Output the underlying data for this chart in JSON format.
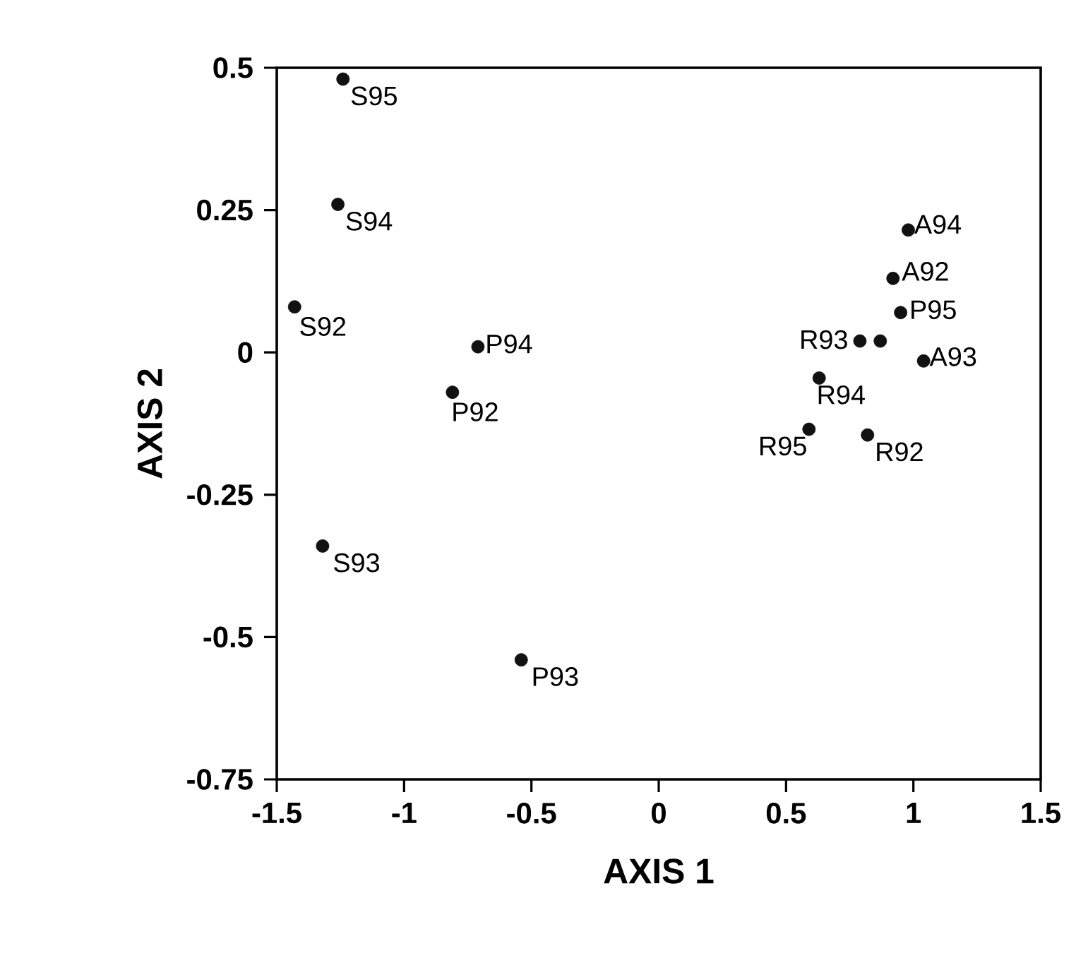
{
  "chart_data": {
    "type": "scatter",
    "xlabel": "AXIS 1",
    "ylabel": "AXIS 2",
    "x": [
      -1.24,
      -1.26,
      -1.43,
      -0.71,
      -0.81,
      -1.32,
      -0.54,
      0.98,
      0.92,
      0.95,
      0.79,
      0.87,
      1.04,
      0.63,
      0.59,
      0.82
    ],
    "values": [
      0.48,
      0.26,
      0.08,
      0.01,
      -0.07,
      -0.34,
      -0.54,
      0.215,
      0.13,
      0.07,
      0.02,
      0.02,
      -0.015,
      -0.045,
      -0.135,
      -0.145
    ],
    "color": "#111111",
    "xlim": [
      -1.5,
      1.5
    ],
    "xticks": [
      -1.5,
      -1,
      -0.5,
      0,
      0.5,
      1,
      1.5
    ],
    "ylim": [
      -0.75,
      0.5
    ],
    "yticks": [
      -0.75,
      -0.5,
      -0.25,
      0,
      0.25,
      0.5
    ],
    "annotations": [
      {
        "text": "S95",
        "x": -1.24,
        "y": 0.48
      },
      {
        "text": "S94",
        "x": -1.26,
        "y": 0.26
      },
      {
        "text": "S92",
        "x": -1.43,
        "y": 0.08
      },
      {
        "text": "P94",
        "x": -0.71,
        "y": 0.01
      },
      {
        "text": "P92",
        "x": -0.81,
        "y": -0.07
      },
      {
        "text": "S93",
        "x": -1.32,
        "y": -0.34
      },
      {
        "text": "P93",
        "x": -0.54,
        "y": -0.54
      },
      {
        "text": "A94",
        "x": 0.98,
        "y": 0.215
      },
      {
        "text": "A92",
        "x": 0.92,
        "y": 0.13
      },
      {
        "text": "P95",
        "x": 0.95,
        "y": 0.07
      },
      {
        "text": "R93",
        "x": 0.79,
        "y": 0.02
      },
      {
        "text": "A93",
        "x": 1.04,
        "y": -0.015
      },
      {
        "text": "R94",
        "x": 0.63,
        "y": -0.045
      },
      {
        "text": "R95",
        "x": 0.59,
        "y": -0.135
      },
      {
        "text": "R92",
        "x": 0.82,
        "y": -0.145
      }
    ]
  }
}
